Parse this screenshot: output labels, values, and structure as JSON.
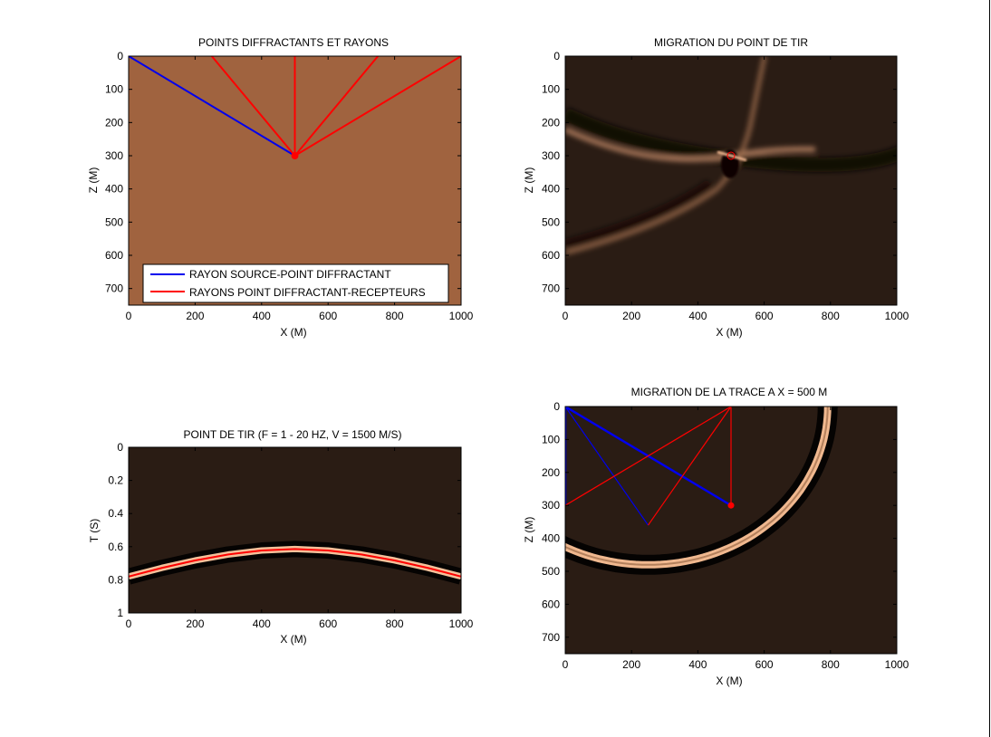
{
  "colors": {
    "model_fill": "#a0633f",
    "image_background": "#2a1c14",
    "source_ray": "#0000ee",
    "receiver_ray": "#ff0000",
    "axis": "#000000"
  },
  "chart_data": [
    {
      "type": "line",
      "title": "POINTS DIFFRACTANTS ET RAYONS",
      "xlabel": "X (M)",
      "ylabel": "Z (M)",
      "xlim": [
        0,
        1000
      ],
      "ylim": [
        750,
        0
      ],
      "xticks": [
        0,
        200,
        400,
        600,
        800,
        1000
      ],
      "yticks": [
        0,
        100,
        200,
        300,
        400,
        500,
        600,
        700
      ],
      "legend_position": "bottom-right",
      "diffractor": [
        500,
        300
      ],
      "series": [
        {
          "name": "RAYON SOURCE-POINT DIFFRACTANT",
          "color": "blue",
          "segments": [
            [
              [
                0,
                0
              ],
              [
                500,
                300
              ]
            ]
          ]
        },
        {
          "name": "RAYONS POINT DIFFRACTANT-RECEPTEURS",
          "color": "red",
          "segments": [
            [
              [
                500,
                300
              ],
              [
                250,
                0
              ]
            ],
            [
              [
                500,
                300
              ],
              [
                500,
                0
              ]
            ],
            [
              [
                500,
                300
              ],
              [
                750,
                0
              ]
            ],
            [
              [
                500,
                300
              ],
              [
                1000,
                0
              ]
            ]
          ]
        }
      ]
    },
    {
      "type": "heatmap",
      "title": "MIGRATION DU POINT DE TIR",
      "xlabel": "X (M)",
      "ylabel": "Z (M)",
      "xlim": [
        0,
        1000
      ],
      "ylim": [
        750,
        0
      ],
      "xticks": [
        0,
        200,
        400,
        600,
        800,
        1000
      ],
      "yticks": [
        0,
        100,
        200,
        300,
        400,
        500,
        600,
        700
      ],
      "marker": {
        "x": 500,
        "y": 300,
        "shape": "circle",
        "color": "red"
      }
    },
    {
      "type": "heatmap",
      "title": "POINT DE TIR (F = 1 - 20 HZ, V = 1500 M/S)",
      "xlabel": "X (M)",
      "ylabel": "T (S)",
      "xlim": [
        0,
        1000
      ],
      "ylim": [
        1,
        0
      ],
      "xticks": [
        0,
        200,
        400,
        600,
        800,
        1000
      ],
      "yticks": [
        0,
        0.2,
        0.4,
        0.6,
        0.8,
        1
      ],
      "event_curve": {
        "x": [
          0,
          100,
          200,
          300,
          400,
          500,
          600,
          700,
          800,
          900,
          1000
        ],
        "t": [
          0.78,
          0.728,
          0.683,
          0.647,
          0.623,
          0.614,
          0.623,
          0.647,
          0.683,
          0.728,
          0.78
        ]
      }
    },
    {
      "type": "heatmap",
      "title": "MIGRATION DE LA TRACE A X = 500 M",
      "xlabel": "X (M)",
      "ylabel": "Z (M)",
      "xlim": [
        0,
        1000
      ],
      "ylim": [
        750,
        0
      ],
      "xticks": [
        0,
        200,
        400,
        600,
        800,
        1000
      ],
      "yticks": [
        0,
        100,
        200,
        300,
        400,
        500,
        600,
        700
      ],
      "isochron": {
        "focus_a": [
          0,
          0
        ],
        "focus_b": [
          500,
          0
        ],
        "sum_distance": 1083
      },
      "rays": [
        {
          "color": "blue",
          "width": "thick",
          "points": [
            [
              0,
              0
            ],
            [
              0,
              300
            ]
          ]
        },
        {
          "color": "blue",
          "width": "thick",
          "points": [
            [
              0,
              0
            ],
            [
              500,
              300
            ]
          ]
        },
        {
          "color": "blue",
          "width": "thin",
          "points": [
            [
              0,
              0
            ],
            [
              250,
              360
            ]
          ]
        },
        {
          "color": "red",
          "width": "thin",
          "points": [
            [
              0,
              300
            ],
            [
              500,
              0
            ]
          ]
        },
        {
          "color": "red",
          "width": "thin",
          "points": [
            [
              500,
              0
            ],
            [
              500,
              300
            ]
          ]
        },
        {
          "color": "red",
          "width": "thin",
          "points": [
            [
              250,
              360
            ],
            [
              500,
              0
            ]
          ]
        }
      ],
      "marker": {
        "x": 500,
        "y": 300,
        "shape": "dot",
        "color": "red"
      }
    }
  ]
}
